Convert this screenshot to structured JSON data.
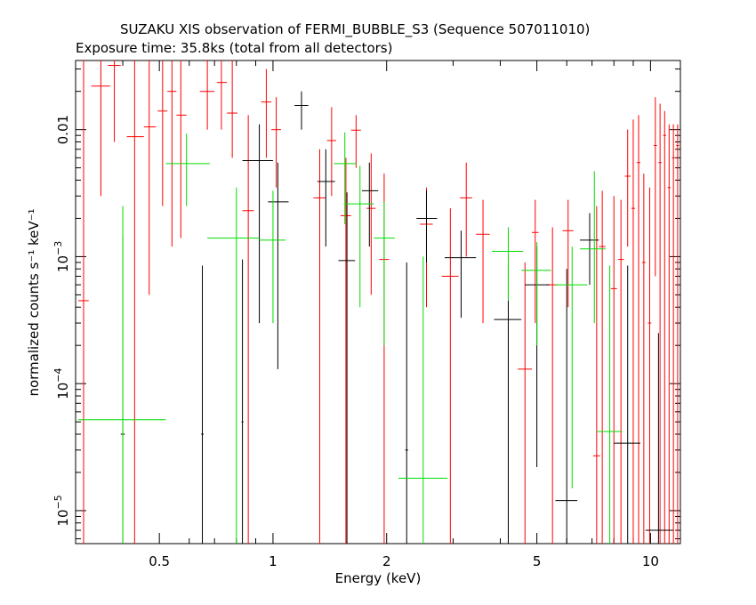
{
  "chart_data": {
    "type": "scatter",
    "title": "SUZAKU XIS observation of FERMI_BUBBLE_S3 (Sequence 507011010)",
    "subtitle": "Exposure time: 35.8ks (total from all detectors)",
    "xlabel": "Energy (keV)",
    "ylabel": "normalized counts s⁻¹ keV⁻¹",
    "xscale": "log",
    "yscale": "log",
    "xlim": [
      0.3,
      12
    ],
    "ylim": [
      5.5e-06,
      0.035
    ],
    "x_ticks": [
      {
        "value": 0.5,
        "label": "0.5"
      },
      {
        "value": 1,
        "label": "1"
      },
      {
        "value": 2,
        "label": "2"
      },
      {
        "value": 5,
        "label": "5"
      },
      {
        "value": 10,
        "label": "10"
      }
    ],
    "y_ticks": [
      {
        "value": 0.01,
        "label": "0.01",
        "exp": ""
      },
      {
        "value": 0.001,
        "label": "10",
        "exp": "−3"
      },
      {
        "value": 0.0001,
        "label": "10",
        "exp": "−4"
      },
      {
        "value": 1e-05,
        "label": "10",
        "exp": "−5"
      }
    ],
    "series": [
      {
        "color": "#ff0000",
        "points": [
          {
            "x": 0.315,
            "xerr": [
              0.305,
              0.325
            ],
            "y": 0.00045,
            "yerr": [
              5.5e-06,
              0.035
            ]
          },
          {
            "x": 0.35,
            "xerr": [
              0.33,
              0.37
            ],
            "y": 0.022,
            "yerr": [
              0.003,
              0.035
            ]
          },
          {
            "x": 0.38,
            "xerr": [
              0.365,
              0.395
            ],
            "y": 0.032,
            "yerr": [
              0.008,
              0.035
            ]
          },
          {
            "x": 0.43,
            "xerr": [
              0.41,
              0.455
            ],
            "y": 0.0088,
            "yerr": [
              5.5e-06,
              0.035
            ]
          },
          {
            "x": 0.47,
            "xerr": [
              0.455,
              0.49
            ],
            "y": 0.0105,
            "yerr": [
              0.0005,
              0.035
            ]
          },
          {
            "x": 0.51,
            "xerr": [
              0.495,
              0.525
            ],
            "y": 0.014,
            "yerr": [
              0.0025,
              0.035
            ]
          },
          {
            "x": 0.54,
            "xerr": [
              0.525,
              0.555
            ],
            "y": 0.02,
            "yerr": [
              0.0012,
              0.035
            ]
          },
          {
            "x": 0.57,
            "xerr": [
              0.555,
              0.59
            ],
            "y": 0.013,
            "yerr": [
              0.0014,
              0.035
            ]
          },
          {
            "x": 0.67,
            "xerr": [
              0.64,
              0.7
            ],
            "y": 0.02,
            "yerr": [
              0.01,
              0.035
            ]
          },
          {
            "x": 0.73,
            "xerr": [
              0.71,
              0.755
            ],
            "y": 0.0235,
            "yerr": [
              0.01,
              0.035
            ]
          },
          {
            "x": 0.78,
            "xerr": [
              0.755,
              0.805
            ],
            "y": 0.0135,
            "yerr": [
              0.006,
              0.035
            ]
          },
          {
            "x": 0.86,
            "xerr": [
              0.83,
              0.89
            ],
            "y": 0.0023,
            "yerr": [
              5.5e-06,
              0.013
            ]
          },
          {
            "x": 0.96,
            "xerr": [
              0.93,
              0.99
            ],
            "y": 0.0165,
            "yerr": [
              0.006,
              0.03
            ]
          },
          {
            "x": 1.02,
            "xerr": [
              0.99,
              1.05
            ],
            "y": 0.01,
            "yerr": [
              0.0035,
              0.018
            ]
          },
          {
            "x": 1.33,
            "xerr": [
              1.28,
              1.38
            ],
            "y": 0.0029,
            "yerr": [
              5.5e-06,
              0.007
            ]
          },
          {
            "x": 1.43,
            "xerr": [
              1.39,
              1.47
            ],
            "y": 0.0082,
            "yerr": [
              0.003,
              0.015
            ]
          },
          {
            "x": 1.56,
            "xerr": [
              1.51,
              1.61
            ],
            "y": 0.0021,
            "yerr": [
              5.5e-06,
              0.006
            ]
          },
          {
            "x": 1.66,
            "xerr": [
              1.61,
              1.71
            ],
            "y": 0.0099,
            "yerr": [
              0.005,
              0.013
            ]
          },
          {
            "x": 1.82,
            "xerr": [
              1.77,
              1.87
            ],
            "y": 0.0024,
            "yerr": [
              0.0005,
              0.0065
            ]
          },
          {
            "x": 1.97,
            "xerr": [
              1.91,
              2.03
            ],
            "y": 0.00095,
            "yerr": [
              5.5e-06,
              0.0045
            ]
          },
          {
            "x": 2.55,
            "xerr": [
              2.45,
              2.65
            ],
            "y": 0.0018,
            "yerr": [
              0.0004,
              0.0035
            ]
          },
          {
            "x": 2.95,
            "xerr": [
              2.8,
              3.1
            ],
            "y": 0.0007,
            "yerr": [
              5.5e-06,
              0.0024
            ]
          },
          {
            "x": 3.25,
            "xerr": [
              3.13,
              3.37
            ],
            "y": 0.0029,
            "yerr": [
              0.001,
              0.0055
            ]
          },
          {
            "x": 3.6,
            "xerr": [
              3.45,
              3.75
            ],
            "y": 0.0015,
            "yerr": [
              0.0003,
              0.0028
            ]
          },
          {
            "x": 4.65,
            "xerr": [
              4.45,
              4.85
            ],
            "y": 0.00013,
            "yerr": [
              5.5e-06,
              0.0009
            ]
          },
          {
            "x": 4.95,
            "xerr": [
              4.85,
              5.05
            ],
            "y": 0.00155,
            "yerr": [
              0.0003,
              0.0028
            ]
          },
          {
            "x": 5.5,
            "xerr": [
              5.3,
              5.7
            ],
            "y": 0.0006,
            "yerr": [
              5.5e-06,
              0.0017
            ]
          },
          {
            "x": 6.05,
            "xerr": [
              5.85,
              6.25
            ],
            "y": 0.0016,
            "yerr": [
              0.0004,
              0.0028
            ]
          },
          {
            "x": 7.2,
            "xerr": [
              7.05,
              7.35
            ],
            "y": 2.7e-05,
            "yerr": [
              5.5e-06,
              0.0025
            ]
          },
          {
            "x": 7.45,
            "xerr": [
              7.3,
              7.6
            ],
            "y": 0.0012,
            "yerr": [
              5.5e-06,
              0.0033
            ]
          },
          {
            "x": 8.0,
            "xerr": [
              7.85,
              8.15
            ],
            "y": 0.00056,
            "yerr": [
              5.5e-06,
              0.003
            ]
          },
          {
            "x": 8.35,
            "xerr": [
              8.2,
              8.5
            ],
            "y": 0.00095,
            "yerr": [
              5.5e-06,
              0.0028
            ]
          },
          {
            "x": 8.7,
            "xerr": [
              8.55,
              8.85
            ],
            "y": 0.0043,
            "yerr": [
              0.0012,
              0.01
            ]
          },
          {
            "x": 9.0,
            "xerr": [
              8.9,
              9.1
            ],
            "y": 0.0024,
            "yerr": [
              5.5e-06,
              0.012
            ]
          },
          {
            "x": 9.3,
            "xerr": [
              9.2,
              9.4
            ],
            "y": 0.0055,
            "yerr": [
              5.5e-06,
              0.013
            ]
          },
          {
            "x": 9.6,
            "xerr": [
              9.5,
              9.7
            ],
            "y": 0.0009,
            "yerr": [
              5.5e-06,
              0.0045
            ]
          },
          {
            "x": 9.95,
            "xerr": [
              9.85,
              10.05
            ],
            "y": 0.0003,
            "yerr": [
              5.5e-06,
              0.0035
            ]
          },
          {
            "x": 10.3,
            "xerr": [
              10.2,
              10.4
            ],
            "y": 0.0075,
            "yerr": [
              0.0007,
              0.018
            ]
          },
          {
            "x": 10.6,
            "xerr": [
              10.5,
              10.7
            ],
            "y": 0.0055,
            "yerr": [
              5.5e-06,
              0.016
            ]
          },
          {
            "x": 10.9,
            "xerr": [
              10.8,
              11.0
            ],
            "y": 0.009,
            "yerr": [
              5.5e-06,
              0.014
            ]
          },
          {
            "x": 11.2,
            "xerr": [
              11.1,
              11.3
            ],
            "y": 0.0035,
            "yerr": [
              5.5e-06,
              0.011
            ]
          },
          {
            "x": 11.5,
            "xerr": [
              11.4,
              11.6
            ],
            "y": 0.006,
            "yerr": [
              5.5e-06,
              0.011
            ]
          },
          {
            "x": 11.8,
            "xerr": [
              11.7,
              11.9
            ],
            "y": 0.0075,
            "yerr": [
              5.5e-06,
              0.011
            ]
          }
        ]
      },
      {
        "color": "#000000",
        "points": [
          {
            "x": 0.4,
            "xerr": [
              0.395,
              0.405
            ],
            "y": 4e-05,
            "yerr": [
              5.5e-06,
              0.0015
            ]
          },
          {
            "x": 0.65,
            "xerr": [
              0.645,
              0.655
            ],
            "y": 4e-05,
            "yerr": [
              5.5e-06,
              0.00085
            ]
          },
          {
            "x": 0.92,
            "xerr": [
              0.83,
              1.0
            ],
            "y": 0.0057,
            "yerr": [
              0.0003,
              0.011
            ]
          },
          {
            "x": 0.83,
            "xerr": [
              0.825,
              0.835
            ],
            "y": 5e-05,
            "yerr": [
              5.5e-06,
              0.00095
            ]
          },
          {
            "x": 1.03,
            "xerr": [
              0.97,
              1.1
            ],
            "y": 0.0027,
            "yerr": [
              0.00013,
              0.0055
            ]
          },
          {
            "x": 1.19,
            "xerr": [
              1.14,
              1.24
            ],
            "y": 0.0155,
            "yerr": [
              0.01,
              0.02
            ]
          },
          {
            "x": 1.38,
            "xerr": [
              1.31,
              1.46
            ],
            "y": 0.0039,
            "yerr": [
              0.0012,
              0.007
            ]
          },
          {
            "x": 1.57,
            "xerr": [
              1.49,
              1.65
            ],
            "y": 0.00093,
            "yerr": [
              5.5e-06,
              0.0032
            ]
          },
          {
            "x": 1.8,
            "xerr": [
              1.72,
              1.9
            ],
            "y": 0.0033,
            "yerr": [
              0.0012,
              0.0055
            ]
          },
          {
            "x": 2.26,
            "xerr": [
              2.24,
              2.28
            ],
            "y": 3e-05,
            "yerr": [
              5.5e-06,
              0.0009
            ]
          },
          {
            "x": 2.55,
            "xerr": [
              2.4,
              2.72
            ],
            "y": 0.002,
            "yerr": [
              0.0009,
              0.0033
            ]
          },
          {
            "x": 3.15,
            "xerr": [
              2.85,
              3.45
            ],
            "y": 0.00098,
            "yerr": [
              0.00033,
              0.0016
            ]
          },
          {
            "x": 4.2,
            "xerr": [
              3.85,
              4.55
            ],
            "y": 0.00032,
            "yerr": [
              5.5e-06,
              0.0009
            ]
          },
          {
            "x": 5.0,
            "xerr": [
              4.65,
              5.4
            ],
            "y": 0.0006,
            "yerr": [
              2.2e-05,
              0.0012
            ]
          },
          {
            "x": 6.0,
            "xerr": [
              5.6,
              6.4
            ],
            "y": 1.2e-05,
            "yerr": [
              5.5e-06,
              0.0008
            ]
          },
          {
            "x": 6.9,
            "xerr": [
              6.5,
              7.3
            ],
            "y": 0.00135,
            "yerr": [
              0.0006,
              0.0022
            ]
          },
          {
            "x": 8.7,
            "xerr": [
              8.0,
              9.4
            ],
            "y": 3.4e-05,
            "yerr": [
              5.5e-06,
              0.00085
            ]
          },
          {
            "x": 10.5,
            "xerr": [
              9.7,
              11.5
            ],
            "y": 7e-06,
            "yerr": [
              5.5e-06,
              0.00025
            ]
          }
        ]
      },
      {
        "color": "#00dd00",
        "points": [
          {
            "x": 0.4,
            "xerr": [
              0.305,
              0.52
            ],
            "y": 5.2e-05,
            "yerr": [
              5.5e-06,
              0.0025
            ]
          },
          {
            "x": 0.59,
            "xerr": [
              0.52,
              0.68
            ],
            "y": 0.0054,
            "yerr": [
              0.0025,
              0.0093
            ]
          },
          {
            "x": 0.8,
            "xerr": [
              0.67,
              0.92
            ],
            "y": 0.0014,
            "yerr": [
              5.5e-06,
              0.0035
            ]
          },
          {
            "x": 1.0,
            "xerr": [
              0.92,
              1.08
            ],
            "y": 0.00135,
            "yerr": [
              0.0003,
              0.0033
            ]
          },
          {
            "x": 1.55,
            "xerr": [
              1.45,
              1.66
            ],
            "y": 0.0054,
            "yerr": [
              0.0018,
              0.0095
            ]
          },
          {
            "x": 1.7,
            "xerr": [
              1.55,
              1.85
            ],
            "y": 0.0026,
            "yerr": [
              0.0004,
              0.0052
            ]
          },
          {
            "x": 1.97,
            "xerr": [
              1.85,
              2.1
            ],
            "y": 0.0014,
            "yerr": [
              0.0002,
              0.0027
            ]
          },
          {
            "x": 2.5,
            "xerr": [
              2.15,
              2.9
            ],
            "y": 1.8e-05,
            "yerr": [
              5.5e-06,
              0.001
            ]
          },
          {
            "x": 4.2,
            "xerr": [
              3.8,
              4.6
            ],
            "y": 0.0011,
            "yerr": [
              0.00045,
              0.0017
            ]
          },
          {
            "x": 5.0,
            "xerr": [
              4.55,
              5.45
            ],
            "y": 0.00078,
            "yerr": [
              0.0002,
              0.0013
            ]
          },
          {
            "x": 6.2,
            "xerr": [
              5.6,
              6.8
            ],
            "y": 0.0006,
            "yerr": [
              1.5e-05,
              0.0012
            ]
          },
          {
            "x": 7.1,
            "xerr": [
              6.5,
              7.6
            ],
            "y": 0.00115,
            "yerr": [
              0.0003,
              0.0047
            ]
          },
          {
            "x": 7.8,
            "xerr": [
              7.2,
              8.4
            ],
            "y": 4.2e-05,
            "yerr": [
              5.5e-06,
              0.00085
            ]
          }
        ]
      }
    ]
  }
}
